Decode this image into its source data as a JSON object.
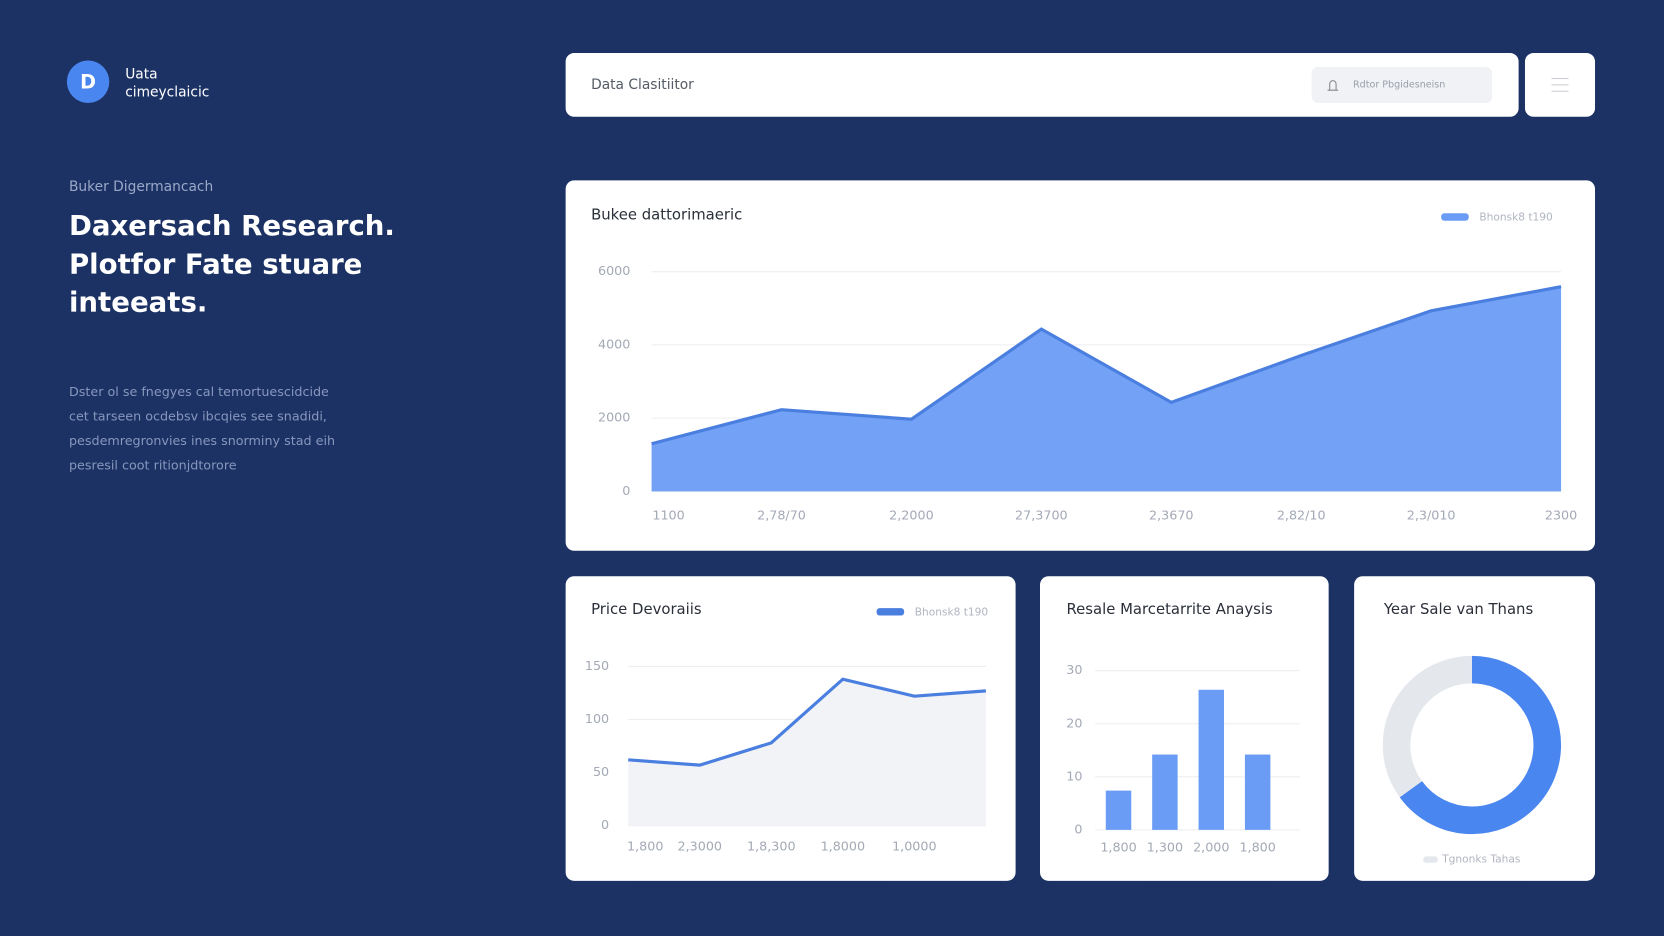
{
  "sidebar": {
    "logo": "D",
    "brand_line1": "Uata",
    "brand_line2": "cimeyclaicic",
    "eyebrow": "Buker Digermancach",
    "headline": [
      "Daxersach Research.",
      "Plotfor Fate stuare",
      "inteeats."
    ],
    "paragraph": [
      "Dster ol se fnegyes cal temortuescidcide",
      "cet tarseen ocdebsv ibcqies see snadidi,",
      "pesdemregronvies ines snorminy stad eih",
      "pesresil coot ritionjdtorore"
    ]
  },
  "header": {
    "title": "Data Clasitiitor",
    "search": "Rdtor Pbgidesneisn"
  },
  "chart_data": [
    {
      "type": "area",
      "title": "Bukee dattorimaeric",
      "categories": [
        "1100",
        "2,78/70",
        "2,2000",
        "27,3700",
        "2,3670",
        "2,82/10",
        "2,3/010",
        "2300"
      ],
      "series": [
        {
          "name": "Bhonsk8 t190",
          "color": "#6b9cf5",
          "values": [
            1300,
            2230,
            1970,
            4430,
            2430,
            3710,
            4930,
            5590
          ]
        }
      ],
      "ylim": [
        0,
        6000
      ],
      "yticks": [
        0,
        2000,
        4000,
        6000
      ],
      "grid": true
    },
    {
      "type": "line",
      "title": "Price Devoraiis",
      "categories": [
        "1,800",
        "2,3000",
        "1,8,300",
        "1,8000",
        "1,0000",
        null
      ],
      "series": [
        {
          "name": "Bhonsk8 t190",
          "color": "#4a7fe0",
          "values": [
            62,
            57,
            78,
            138,
            122,
            127
          ]
        }
      ],
      "ylim": [
        0,
        150
      ],
      "yticks": [
        0,
        50,
        100,
        150
      ],
      "grid": true
    },
    {
      "type": "bar",
      "title": "Resale Marcetarrite Anaysis",
      "categories": [
        "1,800",
        "1,300",
        "2,000",
        "1,800"
      ],
      "values": [
        7.4,
        14.2,
        26.4,
        14.2
      ],
      "color": "#6b9cf5",
      "ylim": [
        0,
        30
      ],
      "yticks": [
        0,
        10,
        20,
        30
      ],
      "grid": true
    },
    {
      "type": "donut",
      "title": "Year Sale van Thans",
      "values": [
        65,
        35
      ],
      "colors": [
        "#4a86f0",
        "#e4e7ec"
      ],
      "legend": "Tgnonks Tahas"
    }
  ]
}
